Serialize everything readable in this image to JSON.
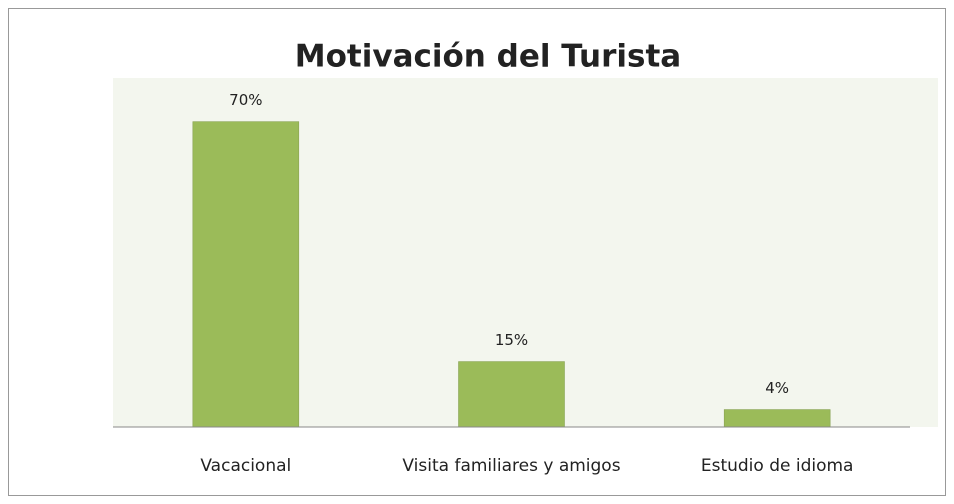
{
  "chart_data": {
    "type": "bar",
    "title": "Motivación del Turista",
    "categories": [
      "Vacacional",
      "Visita familiares y amigos",
      "Estudio de idioma"
    ],
    "values": [
      70,
      15,
      4
    ],
    "value_labels": [
      "70%",
      "15%",
      "4%"
    ],
    "color": "#9bbb59",
    "ylim": [
      0,
      80
    ]
  }
}
